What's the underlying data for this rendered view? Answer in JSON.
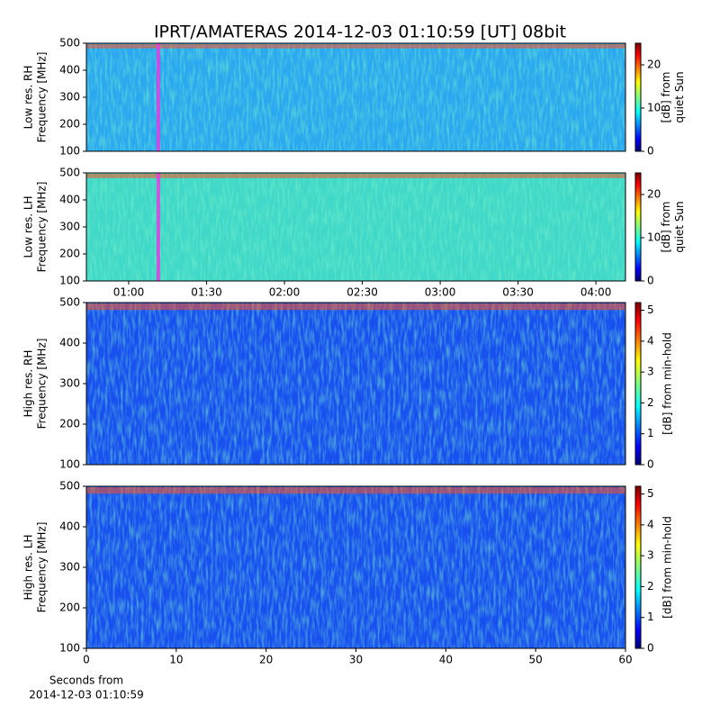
{
  "title": "IPRT/AMATERAS 2014-12-03 01:10:59 [UT]   08bit",
  "chart_data": [
    {
      "type": "spectrogram",
      "ylabel": [
        "Low res. RH",
        "Frequency [MHz]"
      ],
      "ylim": [
        100,
        500
      ],
      "yticks": [
        100,
        200,
        300,
        400,
        500
      ],
      "xlim": [
        43.7,
        251.4
      ],
      "marker_x": 71.4,
      "marker_color": "#e040e0",
      "base_color": "#2aa8f0",
      "colorbar": {
        "label": [
          "[dB] from",
          "quiet Sun"
        ],
        "lim": [
          0,
          25
        ],
        "ticks": [
          0,
          10,
          20
        ]
      }
    },
    {
      "type": "spectrogram",
      "ylabel": [
        "Low res. LH",
        "Frequency [MHz]"
      ],
      "ylim": [
        100,
        500
      ],
      "yticks": [
        100,
        200,
        300,
        400,
        500
      ],
      "xlim": [
        43.7,
        251.4
      ],
      "marker_x": 71.4,
      "marker_color": "#e040e0",
      "base_color": "#40d8c8",
      "xticks": [
        {
          "value": 60,
          "label": "01:00"
        },
        {
          "value": 90,
          "label": "01:30"
        },
        {
          "value": 120,
          "label": "02:00"
        },
        {
          "value": 150,
          "label": "02:30"
        },
        {
          "value": 180,
          "label": "03:00"
        },
        {
          "value": 210,
          "label": "03:30"
        },
        {
          "value": 240,
          "label": "04:00"
        }
      ],
      "colorbar": {
        "label": [
          "[dB] from",
          "quiet Sun"
        ],
        "lim": [
          0,
          25
        ],
        "ticks": [
          0,
          10,
          20
        ]
      }
    },
    {
      "type": "spectrogram",
      "ylabel": [
        "High res. RH",
        "Frequency [MHz]"
      ],
      "ylim": [
        100,
        500
      ],
      "yticks": [
        100,
        200,
        300,
        400,
        500
      ],
      "xlim": [
        0,
        60
      ],
      "base_color": "#1850f0",
      "colorbar": {
        "label": [
          "[dB] from min-hold"
        ],
        "lim": [
          0,
          5.25
        ],
        "ticks": [
          0,
          1,
          2,
          3,
          4,
          5
        ]
      }
    },
    {
      "type": "spectrogram",
      "ylabel": [
        "High res. LH",
        "Frequency [MHz]"
      ],
      "ylim": [
        100,
        500
      ],
      "yticks": [
        100,
        200,
        300,
        400,
        500
      ],
      "xlim": [
        0,
        60
      ],
      "xticks": [
        0,
        10,
        20,
        30,
        40,
        50,
        60
      ],
      "xlabel": [
        "Seconds from",
        "2014-12-03 01:10:59"
      ],
      "base_color": "#1850f0",
      "colorbar": {
        "label": [
          "[dB] from min-hold"
        ],
        "lim": [
          0,
          5.25
        ],
        "ticks": [
          0,
          1,
          2,
          3,
          4,
          5
        ]
      }
    }
  ]
}
